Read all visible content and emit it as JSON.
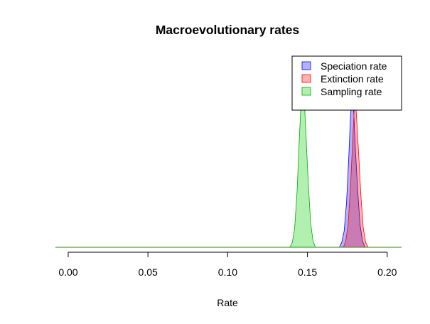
{
  "chart_data": {
    "type": "area",
    "title": "Macroevolutionary rates",
    "xlabel": "Rate",
    "ylabel": "",
    "xlim": [
      -0.008,
      0.209
    ],
    "x_ticks": [
      "0.00",
      "0.05",
      "0.10",
      "0.15",
      "0.20"
    ],
    "x_tick_values": [
      0.0,
      0.05,
      0.1,
      0.15,
      0.2
    ],
    "y_axis_shown": false,
    "grid": false,
    "legend_position": "top-right",
    "series": [
      {
        "name": "Speciation rate",
        "fill": "#0000FF",
        "stroke": "#0000FF",
        "points": [
          [
            -0.008,
            0
          ],
          [
            0.17,
            0
          ],
          [
            0.1715,
            0.03
          ],
          [
            0.173,
            0.1
          ],
          [
            0.1745,
            0.28
          ],
          [
            0.176,
            0.58
          ],
          [
            0.177,
            0.82
          ],
          [
            0.178,
            0.93
          ],
          [
            0.179,
            0.84
          ],
          [
            0.18,
            0.62
          ],
          [
            0.1815,
            0.35
          ],
          [
            0.183,
            0.14
          ],
          [
            0.1845,
            0.04
          ],
          [
            0.186,
            0
          ],
          [
            0.209,
            0
          ]
        ]
      },
      {
        "name": "Extinction rate",
        "fill": "#FF0000",
        "stroke": "#FF0000",
        "points": [
          [
            -0.008,
            0
          ],
          [
            0.1725,
            0
          ],
          [
            0.174,
            0.04
          ],
          [
            0.1755,
            0.14
          ],
          [
            0.177,
            0.38
          ],
          [
            0.1785,
            0.7
          ],
          [
            0.1795,
            0.9
          ],
          [
            0.1805,
            0.86
          ],
          [
            0.182,
            0.6
          ],
          [
            0.1835,
            0.32
          ],
          [
            0.185,
            0.12
          ],
          [
            0.1865,
            0.03
          ],
          [
            0.188,
            0
          ],
          [
            0.209,
            0
          ]
        ]
      },
      {
        "name": "Sampling rate",
        "fill": "#00CC00",
        "stroke": "#00AA00",
        "points": [
          [
            -0.008,
            0
          ],
          [
            0.139,
            0
          ],
          [
            0.1405,
            0.03
          ],
          [
            0.142,
            0.12
          ],
          [
            0.1435,
            0.35
          ],
          [
            0.145,
            0.7
          ],
          [
            0.146,
            0.9
          ],
          [
            0.147,
            1.0
          ],
          [
            0.148,
            0.92
          ],
          [
            0.149,
            0.72
          ],
          [
            0.1505,
            0.4
          ],
          [
            0.152,
            0.15
          ],
          [
            0.1535,
            0.04
          ],
          [
            0.155,
            0
          ],
          [
            0.209,
            0
          ]
        ]
      }
    ]
  }
}
